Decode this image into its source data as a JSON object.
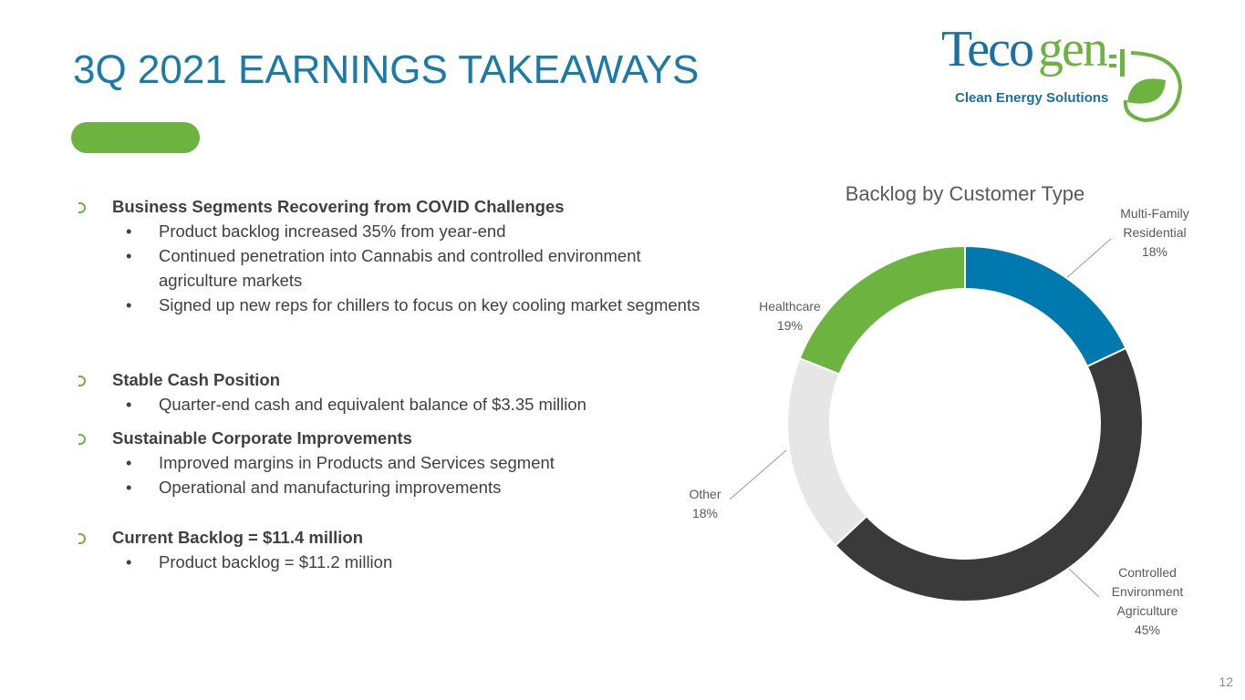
{
  "header": {
    "title": "3Q 2021 EARNINGS TAKEAWAYS"
  },
  "logo": {
    "brand_a": "Teco",
    "brand_b": "gen",
    "tagline": "Clean Energy Solutions"
  },
  "sections": [
    {
      "heading": "Business Segments Recovering from COVID Challenges",
      "items": [
        "Product backlog increased 35% from year-end",
        "Continued penetration into Cannabis and controlled environment agriculture markets",
        "Signed up new reps for chillers to focus on key cooling market segments"
      ]
    },
    {
      "heading": "Stable Cash Position",
      "items": [
        "Quarter-end cash and equivalent balance of $3.35 million"
      ]
    },
    {
      "heading": "Sustainable Corporate Improvements",
      "items": [
        "Improved margins in Products and Services segment",
        "Operational and manufacturing improvements"
      ]
    },
    {
      "heading": "Current Backlog = $11.4 million",
      "items": [
        "Product backlog = $11.2 million"
      ]
    }
  ],
  "chart_data": {
    "type": "donut",
    "title": "Backlog by Customer Type",
    "categories": [
      "Multi-Family Residential",
      "Controlled Environment Agriculture",
      "Other",
      "Healthcare"
    ],
    "values": [
      18,
      45,
      18,
      19
    ],
    "value_labels": [
      "18%",
      "45%",
      "18%",
      "19%"
    ],
    "colors": [
      "#0079ae",
      "#3a3a3a",
      "#e6e6e6",
      "#6db33f"
    ]
  },
  "footer": {
    "page_number": "12"
  }
}
